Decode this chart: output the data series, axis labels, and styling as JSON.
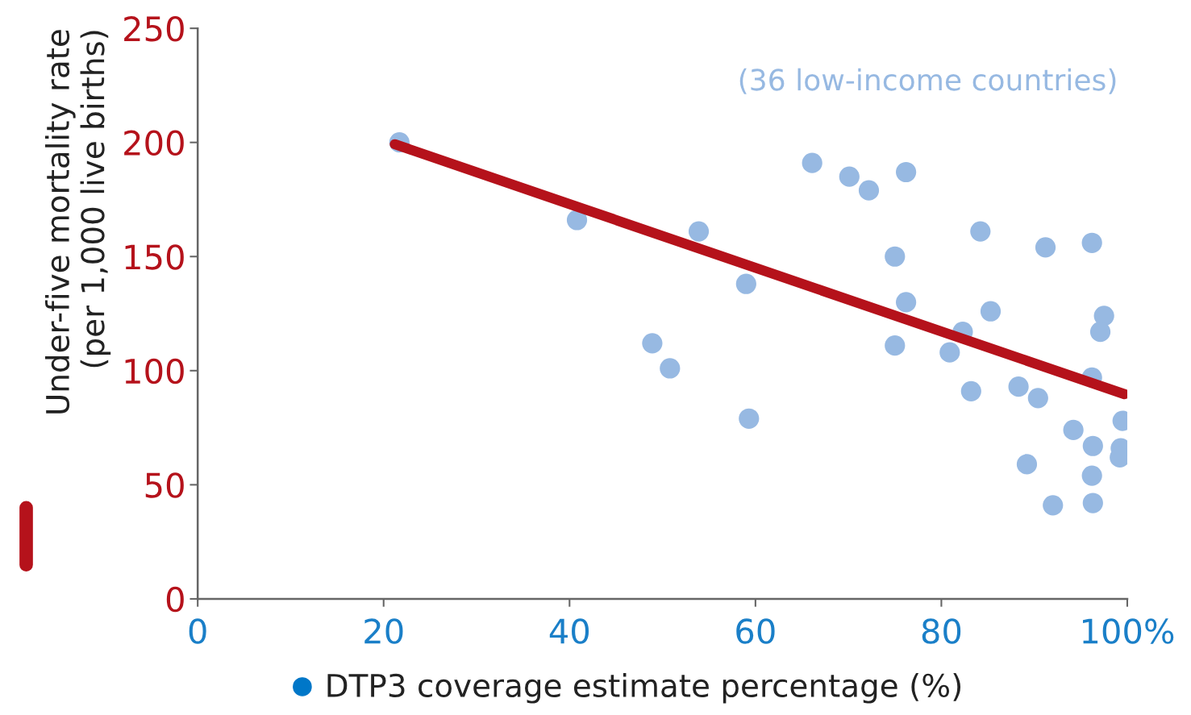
{
  "chart_data": {
    "type": "scatter",
    "xlabel": "DTP3 coverage estimate percentage (%)",
    "ylabel": "Under-five mortality rate\n(per 1,000 live births)",
    "annotations": [
      "(36 low-income countries)"
    ],
    "xlim": [
      0,
      100
    ],
    "ylim": [
      0,
      250
    ],
    "xticks": [
      0,
      20,
      40,
      60,
      80,
      {
        "value": 100,
        "label": "100%"
      }
    ],
    "yticks": [
      0,
      50,
      100,
      150,
      200,
      250
    ],
    "grid": false,
    "series": [
      {
        "color": "#97b9e2",
        "marker": "circle",
        "x": [
          21.7,
          40.8,
          53.9,
          59.0,
          48.9,
          50.8,
          59.3,
          66.1,
          70.1,
          72.2,
          76.2,
          75.0,
          76.2,
          75.0,
          84.2,
          85.3,
          82.3,
          80.9,
          83.2,
          88.3,
          90.4,
          91.2,
          96.2,
          97.5,
          97.1,
          96.2,
          99.5,
          94.2,
          96.3,
          99.3,
          99.2,
          89.2,
          96.2,
          92.0,
          96.3
        ],
        "values": [
          200,
          166,
          161,
          138,
          112,
          101,
          79,
          191,
          185,
          179,
          187,
          150,
          130,
          111,
          161,
          126,
          117,
          108,
          91,
          93,
          88,
          154,
          156,
          124,
          117,
          97,
          78,
          74,
          67,
          66,
          62,
          59,
          54,
          41,
          42
        ]
      },
      {
        "type": "line",
        "color": "#b5121b",
        "marker": "none",
        "line_style": "solid",
        "x": [
          21.2,
          99.7
        ],
        "values": [
          199.2,
          89.7
        ]
      }
    ]
  }
}
